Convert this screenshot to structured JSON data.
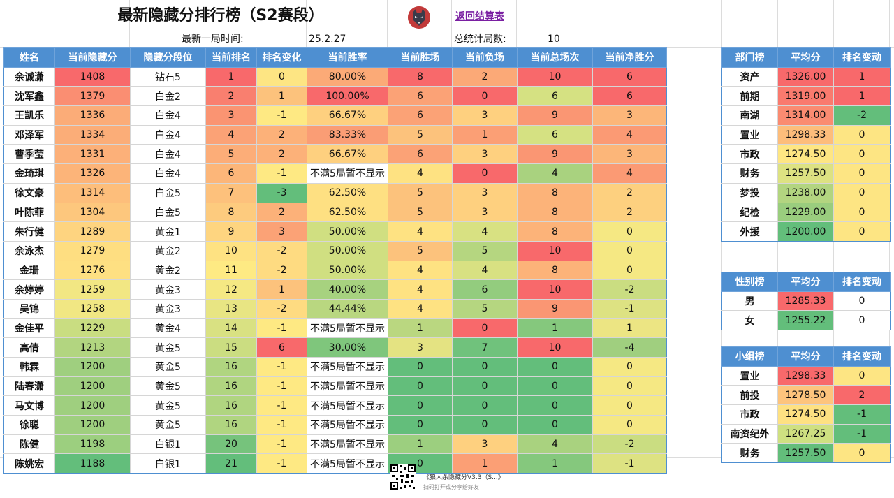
{
  "header": {
    "title": "最新隐藏分排行榜（S2赛段）",
    "back_link": "返回结算表",
    "last_game_label": "最新一局时间:",
    "last_game_value": "25.2.27",
    "total_games_label": "总统计局数:",
    "total_games_value": "10"
  },
  "main_table": {
    "headers": [
      "姓名",
      "当前隐藏分",
      "隐藏分段位",
      "当前排名",
      "排名变化",
      "当前胜率",
      "当前胜场",
      "当前负场",
      "当前总场次",
      "当前净胜分"
    ],
    "rows": [
      {
        "cells": [
          "余诚潇",
          "1408",
          "钻石5",
          "1",
          "0",
          "80.00%",
          "8",
          "2",
          "10",
          "6"
        ],
        "colors": [
          "#ffffff",
          "#f8696b",
          "#ffffff",
          "#f8696b",
          "#fde583",
          "#fbaa77",
          "#f8696b",
          "#fba977",
          "#f8696b",
          "#f8696b"
        ]
      },
      {
        "cells": [
          "沈军鑫",
          "1379",
          "白金2",
          "2",
          "1",
          "100.00%",
          "6",
          "0",
          "6",
          "6"
        ],
        "colors": [
          "#ffffff",
          "#fa8e72",
          "#ffffff",
          "#f97f6f",
          "#fcc27c",
          "#f8696b",
          "#fba276",
          "#f8696b",
          "#d5e182",
          "#f8696b"
        ]
      },
      {
        "cells": [
          "王凯乐",
          "1336",
          "白金4",
          "3",
          "-1",
          "66.67%",
          "6",
          "3",
          "9",
          "3"
        ],
        "colors": [
          "#ffffff",
          "#fbac78",
          "#ffffff",
          "#fa9472",
          "#fee983",
          "#fed07f",
          "#fba276",
          "#fed07f",
          "#fa9673",
          "#fcb679"
        ]
      },
      {
        "cells": [
          "邓泽军",
          "1334",
          "白金4",
          "4",
          "2",
          "83.33%",
          "5",
          "1",
          "6",
          "4"
        ],
        "colors": [
          "#ffffff",
          "#fbad78",
          "#ffffff",
          "#fba276",
          "#fcb179",
          "#fa9d75",
          "#fcc27c",
          "#fb9f75",
          "#d5e182",
          "#fb9a74"
        ]
      },
      {
        "cells": [
          "曹季莹",
          "1331",
          "白金4",
          "5",
          "2",
          "66.67%",
          "6",
          "3",
          "9",
          "3"
        ],
        "colors": [
          "#ffffff",
          "#fcb079",
          "#ffffff",
          "#fcad78",
          "#fcb179",
          "#fed07f",
          "#fba276",
          "#fed07f",
          "#fa9673",
          "#fcb679"
        ]
      },
      {
        "cells": [
          "金琦琪",
          "1326",
          "白金4",
          "6",
          "-1",
          "不满5局暂不显示",
          "4",
          "0",
          "4",
          "4"
        ],
        "colors": [
          "#ffffff",
          "#fcb479",
          "#ffffff",
          "#fcb679",
          "#fee983",
          "#ffffff",
          "#fee282",
          "#f8696b",
          "#a9d27f",
          "#fb9a74"
        ]
      },
      {
        "cells": [
          "徐文豪",
          "1314",
          "白金5",
          "7",
          "-3",
          "62.50%",
          "5",
          "3",
          "8",
          "2"
        ],
        "colors": [
          "#ffffff",
          "#fdbe7b",
          "#ffffff",
          "#fdc17c",
          "#63be7b",
          "#fee082",
          "#fcc27c",
          "#fed07f",
          "#fcb379",
          "#fdd07f"
        ]
      },
      {
        "cells": [
          "叶陈菲",
          "1304",
          "白金5",
          "8",
          "2",
          "62.50%",
          "5",
          "3",
          "8",
          "2"
        ],
        "colors": [
          "#ffffff",
          "#fdc77d",
          "#ffffff",
          "#fdcb7e",
          "#fcb179",
          "#fee082",
          "#fcc27c",
          "#fed07f",
          "#fcb379",
          "#fdd07f"
        ]
      },
      {
        "cells": [
          "朱行健",
          "1289",
          "黄金1",
          "9",
          "3",
          "50.00%",
          "4",
          "4",
          "8",
          "0"
        ],
        "colors": [
          "#ffffff",
          "#fed480",
          "#ffffff",
          "#fed580",
          "#fba276",
          "#d0df81",
          "#fee282",
          "#d8e182",
          "#fcb379",
          "#f5e883"
        ]
      },
      {
        "cells": [
          "余泳杰",
          "1279",
          "黄金2",
          "10",
          "-2",
          "50.00%",
          "5",
          "5",
          "10",
          "0"
        ],
        "colors": [
          "#ffffff",
          "#fede81",
          "#ffffff",
          "#fee282",
          "#fedb81",
          "#d0df81",
          "#fcc27c",
          "#b5d680",
          "#f8696b",
          "#f5e883"
        ]
      },
      {
        "cells": [
          "金珊",
          "1276",
          "黄金2",
          "11",
          "-2",
          "50.00%",
          "4",
          "4",
          "8",
          "0"
        ],
        "colors": [
          "#ffffff",
          "#fee082",
          "#ffffff",
          "#feea83",
          "#fedb81",
          "#d0df81",
          "#fee282",
          "#d8e182",
          "#fcb379",
          "#f5e883"
        ]
      },
      {
        "cells": [
          "余婷婷",
          "1259",
          "黄金3",
          "12",
          "1",
          "40.00%",
          "4",
          "6",
          "10",
          "-2"
        ],
        "colors": [
          "#ffffff",
          "#f2e783",
          "#ffffff",
          "#f5e883",
          "#fcc27c",
          "#a7d27f",
          "#fee282",
          "#93cc7e",
          "#f8696b",
          "#cadd81"
        ]
      },
      {
        "cells": [
          "吴锦",
          "1258",
          "黄金3",
          "13",
          "-2",
          "44.44%",
          "4",
          "5",
          "9",
          "-1"
        ],
        "colors": [
          "#ffffff",
          "#f1e783",
          "#ffffff",
          "#e8e583",
          "#fedb81",
          "#b9d780",
          "#fee282",
          "#b5d680",
          "#fa9673",
          "#ddE282"
        ]
      },
      {
        "cells": [
          "金佳平",
          "1229",
          "黄金4",
          "14",
          "-1",
          "不满5局暂不显示",
          "1",
          "0",
          "1",
          "1"
        ],
        "colors": [
          "#ffffff",
          "#c9dd81",
          "#ffffff",
          "#d9e182",
          "#fee983",
          "#ffffff",
          "#bad780",
          "#f8696b",
          "#85c87d",
          "#ece583"
        ]
      },
      {
        "cells": [
          "高倩",
          "1213",
          "黄金5",
          "15",
          "6",
          "30.00%",
          "3",
          "7",
          "10",
          "-4"
        ],
        "colors": [
          "#ffffff",
          "#b2d580",
          "#ffffff",
          "#cbdd81",
          "#f8696b",
          "#7fc67c",
          "#e4e382",
          "#70c27c",
          "#f8696b",
          "#a0cf7f"
        ]
      },
      {
        "cells": [
          "韩霖",
          "1200",
          "黄金5",
          "16",
          "-1",
          "不满5局暂不显示",
          "0",
          "0",
          "0",
          "0"
        ],
        "colors": [
          "#ffffff",
          "#9fcf7f",
          "#ffffff",
          "#b0d580",
          "#fee983",
          "#ffffff",
          "#63be7b",
          "#63be7b",
          "#63be7b",
          "#f5e883"
        ]
      },
      {
        "cells": [
          "陆春潇",
          "1200",
          "黄金5",
          "16",
          "-1",
          "不满5局暂不显示",
          "0",
          "0",
          "0",
          "0"
        ],
        "colors": [
          "#ffffff",
          "#9fcf7f",
          "#ffffff",
          "#b0d580",
          "#fee983",
          "#ffffff",
          "#63be7b",
          "#63be7b",
          "#63be7b",
          "#f5e883"
        ]
      },
      {
        "cells": [
          "马文博",
          "1200",
          "黄金5",
          "16",
          "-1",
          "不满5局暂不显示",
          "0",
          "0",
          "0",
          "0"
        ],
        "colors": [
          "#ffffff",
          "#9fcf7f",
          "#ffffff",
          "#b0d580",
          "#fee983",
          "#ffffff",
          "#63be7b",
          "#63be7b",
          "#63be7b",
          "#f5e883"
        ]
      },
      {
        "cells": [
          "徐聪",
          "1200",
          "黄金5",
          "16",
          "-1",
          "不满5局暂不显示",
          "0",
          "0",
          "0",
          "0"
        ],
        "colors": [
          "#ffffff",
          "#9fcf7f",
          "#ffffff",
          "#b0d580",
          "#fee983",
          "#ffffff",
          "#63be7b",
          "#63be7b",
          "#63be7b",
          "#f5e883"
        ]
      },
      {
        "cells": [
          "陈健",
          "1198",
          "白银1",
          "20",
          "-1",
          "不满5局暂不显示",
          "1",
          "3",
          "4",
          "-2"
        ],
        "colors": [
          "#ffffff",
          "#9ccf7f",
          "#ffffff",
          "#76c37c",
          "#fee983",
          "#ffffff",
          "#9ccf7f",
          "#fed07f",
          "#a9d27f",
          "#cadd81"
        ]
      },
      {
        "cells": [
          "陈姚宏",
          "1188",
          "白银1",
          "21",
          "-1",
          "不满5局暂不显示",
          "0",
          "1",
          "1",
          "-1"
        ],
        "colors": [
          "#ffffff",
          "#63be7b",
          "#ffffff",
          "#63be7b",
          "#fee983",
          "#ffffff",
          "#63be7b",
          "#fb9f75",
          "#85c87d",
          "#dde282"
        ]
      }
    ]
  },
  "dept_table": {
    "headers": [
      "部门榜",
      "平均分",
      "排名变动"
    ],
    "rows": [
      {
        "cells": [
          "资产",
          "1326.00",
          "1"
        ],
        "colors": [
          "#ffffff",
          "#f8696b",
          "#f8696b"
        ]
      },
      {
        "cells": [
          "前期",
          "1319.00",
          "1"
        ],
        "colors": [
          "#ffffff",
          "#f97a6e",
          "#f8696b"
        ]
      },
      {
        "cells": [
          "南湖",
          "1314.00",
          "-2"
        ],
        "colors": [
          "#ffffff",
          "#fa8b71",
          "#63be7b"
        ]
      },
      {
        "cells": [
          "置业",
          "1298.33",
          "0"
        ],
        "colors": [
          "#ffffff",
          "#fdbd7b",
          "#fde583"
        ]
      },
      {
        "cells": [
          "市政",
          "1274.50",
          "0"
        ],
        "colors": [
          "#ffffff",
          "#fee683",
          "#fde583"
        ]
      },
      {
        "cells": [
          "财务",
          "1257.50",
          "0"
        ],
        "colors": [
          "#ffffff",
          "#dde282",
          "#fde583"
        ]
      },
      {
        "cells": [
          "梦投",
          "1238.00",
          "0"
        ],
        "colors": [
          "#ffffff",
          "#b3d580",
          "#fde583"
        ]
      },
      {
        "cells": [
          "纪检",
          "1229.00",
          "0"
        ],
        "colors": [
          "#ffffff",
          "#9acd7e",
          "#fde583"
        ]
      },
      {
        "cells": [
          "外援",
          "1200.00",
          "0"
        ],
        "colors": [
          "#ffffff",
          "#63be7b",
          "#fde583"
        ]
      }
    ]
  },
  "gender_table": {
    "headers": [
      "性别榜",
      "平均分",
      "排名变动"
    ],
    "rows": [
      {
        "cells": [
          "男",
          "1285.33",
          "0"
        ],
        "colors": [
          "#ffffff",
          "#f8696b",
          "#ffffff"
        ]
      },
      {
        "cells": [
          "女",
          "1255.22",
          "0"
        ],
        "colors": [
          "#ffffff",
          "#63be7b",
          "#ffffff"
        ]
      }
    ]
  },
  "group_table": {
    "headers": [
      "小组榜",
      "平均分",
      "排名变动"
    ],
    "rows": [
      {
        "cells": [
          "置业",
          "1298.33",
          "0"
        ],
        "colors": [
          "#ffffff",
          "#f8696b",
          "#fde583"
        ]
      },
      {
        "cells": [
          "前投",
          "1278.50",
          "2"
        ],
        "colors": [
          "#ffffff",
          "#fdc47d",
          "#f8696b"
        ]
      },
      {
        "cells": [
          "市政",
          "1274.50",
          "-1"
        ],
        "colors": [
          "#ffffff",
          "#fee182",
          "#63be7b"
        ]
      },
      {
        "cells": [
          "南资纪外",
          "1267.25",
          "-1"
        ],
        "colors": [
          "#ffffff",
          "#cfe081",
          "#63be7b"
        ]
      },
      {
        "cells": [
          "财务",
          "1257.50",
          "0"
        ],
        "colors": [
          "#ffffff",
          "#63be7b",
          "#fde583"
        ]
      }
    ]
  },
  "footer": {
    "title": "《狼人杀隐藏分V3.3（S...》",
    "subtitle": "扫码打开或分享给好友"
  }
}
